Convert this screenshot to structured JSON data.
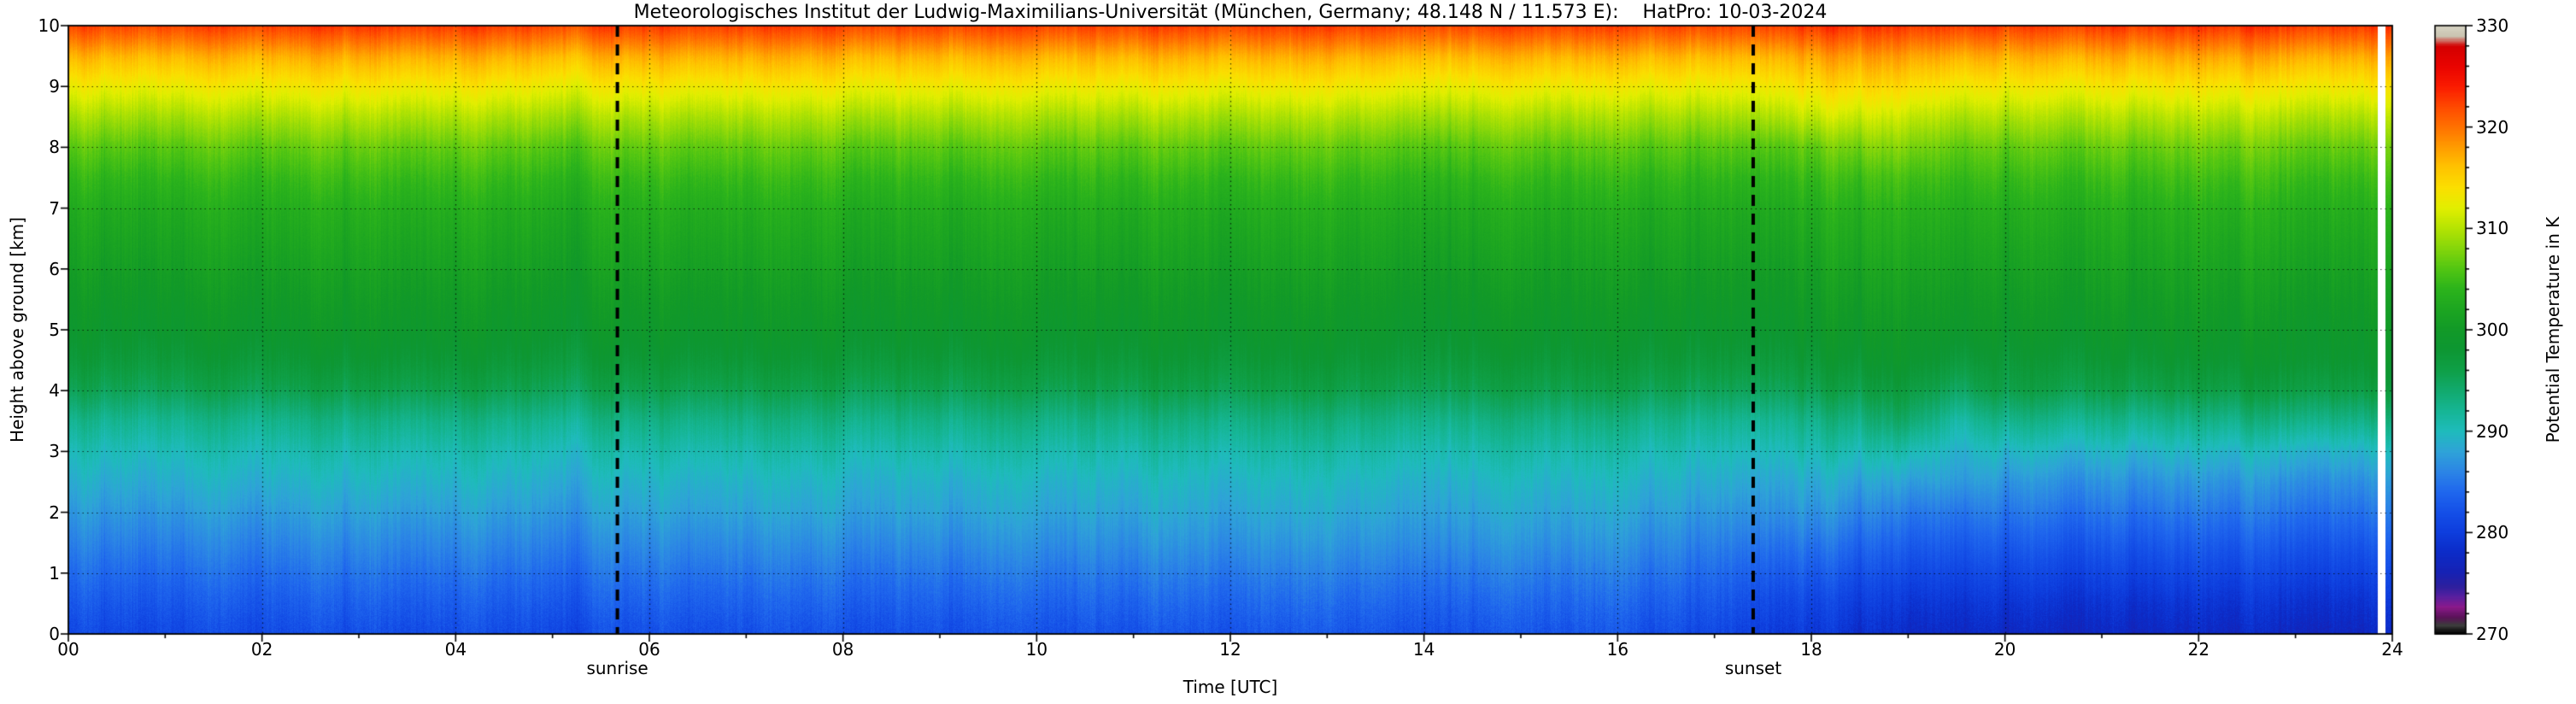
{
  "figure": {
    "background": "#ffffff",
    "axis_color": "#000000"
  },
  "chart_data": {
    "type": "heatmap",
    "title": "Meteorologisches Institut der Ludwig-Maximilians-Universität (München, Germany; 48.148 N / 11.573 E):    HatPro: 10-03-2024",
    "xlabel": "Time [UTC]",
    "ylabel": "Height above ground [km]",
    "colorbar_label": "Potential Temperature in K",
    "xlim": [
      0,
      24
    ],
    "ylim": [
      0,
      10
    ],
    "clim": [
      270,
      330
    ],
    "grid": "dotted",
    "legend_position": "none",
    "xtick_values": [
      0,
      2,
      4,
      6,
      8,
      10,
      12,
      14,
      16,
      18,
      20,
      22,
      24
    ],
    "xtick_labels": [
      "00",
      "02",
      "04",
      "06",
      "08",
      "10",
      "12",
      "14",
      "16",
      "18",
      "20",
      "22",
      "24"
    ],
    "ytick_values": [
      0,
      1,
      2,
      3,
      4,
      5,
      6,
      7,
      8,
      9,
      10
    ],
    "ctick_values": [
      270,
      280,
      290,
      300,
      310,
      320,
      330
    ],
    "annotations": [
      {
        "text": "sunrise",
        "x": 5.67,
        "style": "dashed-vertical-line"
      },
      {
        "text": "sunset",
        "x": 17.4,
        "style": "dashed-vertical-line"
      }
    ],
    "missing_data_intervals": [
      [
        23.85,
        23.93
      ]
    ],
    "colormap_stops": [
      [
        270,
        "#000000"
      ],
      [
        270.8,
        "#3c3c3c"
      ],
      [
        271.6,
        "#5a1258"
      ],
      [
        272.6,
        "#8b1a8b"
      ],
      [
        273.6,
        "#5a20a0"
      ],
      [
        274.6,
        "#2e1f9e"
      ],
      [
        276,
        "#1722b4"
      ],
      [
        278,
        "#0c2cc8"
      ],
      [
        280,
        "#0e3ede"
      ],
      [
        282,
        "#1550e8"
      ],
      [
        284,
        "#2068ee"
      ],
      [
        286,
        "#2c86e6"
      ],
      [
        288,
        "#2fa4d8"
      ],
      [
        290,
        "#1fbcbc"
      ],
      [
        292,
        "#16b694"
      ],
      [
        294,
        "#12aa6e"
      ],
      [
        296,
        "#0fa048"
      ],
      [
        298,
        "#0d9733"
      ],
      [
        300,
        "#129a28"
      ],
      [
        302,
        "#1da621"
      ],
      [
        304,
        "#2cb41c"
      ],
      [
        306,
        "#52c613"
      ],
      [
        308,
        "#85d60b"
      ],
      [
        310,
        "#b5e403"
      ],
      [
        312,
        "#e2ef00"
      ],
      [
        314,
        "#fbe000"
      ],
      [
        316,
        "#ffc400"
      ],
      [
        318,
        "#ff9d00"
      ],
      [
        320,
        "#ff7200"
      ],
      [
        322,
        "#ff4a00"
      ],
      [
        324,
        "#fb1c00"
      ],
      [
        326,
        "#ea0400"
      ],
      [
        328,
        "#d40000"
      ],
      [
        329,
        "#cac5b2"
      ],
      [
        330,
        "#d8d4c4"
      ]
    ],
    "heatmap": {
      "time_h": [
        0,
        4,
        8,
        12,
        16,
        17,
        18,
        18.5,
        19,
        19.5,
        20,
        21,
        22,
        23,
        24
      ],
      "height_km": [
        0,
        0.5,
        1,
        1.5,
        2,
        2.5,
        3,
        3.5,
        4,
        4.5,
        5,
        5.5,
        6,
        6.5,
        7,
        7.5,
        8,
        8.5,
        9,
        9.5,
        10
      ],
      "potential_temperature_K": [
        [
          281.5,
          283,
          284.5,
          286,
          287.5,
          289,
          290.5,
          292.5,
          295.5,
          297.5,
          299,
          300,
          301,
          302,
          303,
          304.5,
          306.5,
          309.5,
          313,
          317,
          322.5
        ],
        [
          281.5,
          283,
          284.5,
          286,
          287.5,
          289,
          290.5,
          292.5,
          295.5,
          297.5,
          299,
          300,
          301,
          302,
          303,
          304.5,
          306.5,
          309.5,
          313,
          317,
          322.5
        ],
        [
          282,
          283.5,
          285,
          286.5,
          288,
          289.2,
          290.8,
          292.8,
          295.5,
          297.5,
          299,
          300,
          301,
          302,
          303,
          304.5,
          306.5,
          309.5,
          313,
          317,
          322.5
        ],
        [
          282.5,
          284,
          285.5,
          287,
          288.3,
          289.5,
          291,
          293,
          295.8,
          297.6,
          299,
          300,
          301,
          302,
          303,
          304.5,
          306.5,
          309.5,
          313,
          317,
          322.5
        ],
        [
          282.5,
          284,
          285.5,
          287,
          288.3,
          289.5,
          291,
          293,
          295.8,
          297.6,
          299,
          300,
          301,
          302,
          303,
          304.5,
          306.5,
          309.5,
          313,
          317,
          322.5
        ],
        [
          281.5,
          283,
          284.5,
          286,
          287.5,
          289,
          290.5,
          292.5,
          295.5,
          297.5,
          299,
          300,
          301,
          302,
          303,
          304.5,
          306.5,
          309.5,
          313,
          317,
          322.5
        ],
        [
          279.5,
          281,
          283,
          285,
          287,
          288.5,
          290.5,
          292.5,
          295.5,
          297.5,
          299,
          300,
          301,
          302,
          303,
          304.5,
          306.5,
          310.5,
          314,
          317.5,
          323
        ],
        [
          279,
          280.5,
          282.5,
          284.5,
          286.5,
          288.5,
          291,
          293.5,
          296.5,
          298.5,
          300,
          301,
          302,
          303,
          304,
          305.5,
          308,
          311.5,
          315,
          318.5,
          323.5
        ],
        [
          278.5,
          280,
          282,
          284,
          286,
          288.5,
          291.5,
          295,
          297.5,
          299.5,
          300.5,
          301.5,
          302.5,
          303.5,
          304.5,
          306,
          308.5,
          311.5,
          315,
          318.5,
          323.5
        ],
        [
          278,
          279.5,
          281.5,
          283.5,
          285.5,
          288,
          289.5,
          291.5,
          295,
          297.5,
          299.5,
          300.5,
          301.5,
          302.5,
          303.5,
          305,
          307,
          310,
          313.5,
          317.5,
          323
        ],
        [
          278,
          279.5,
          281.5,
          283.5,
          285.5,
          287.5,
          290,
          293,
          296.5,
          298,
          299.5,
          300.5,
          301.5,
          302.5,
          303.5,
          305,
          307,
          310,
          313.5,
          317.5,
          323
        ],
        [
          277.5,
          279,
          281,
          283,
          285,
          287,
          289.5,
          292.5,
          296,
          298,
          299.5,
          300.5,
          301.5,
          302.5,
          303.5,
          305,
          307,
          310,
          313.5,
          317.5,
          323
        ],
        [
          277.5,
          279,
          281,
          283,
          285,
          287,
          289.5,
          292.5,
          296,
          298,
          299.5,
          300.5,
          301.5,
          302.5,
          303.5,
          305,
          307,
          310,
          313.5,
          317.5,
          323
        ],
        [
          277.5,
          279,
          281,
          283,
          285,
          287,
          289.5,
          293,
          296.5,
          298.5,
          299.5,
          300.5,
          301.5,
          302.5,
          303.5,
          305,
          307,
          310,
          313.5,
          317.5,
          323
        ],
        [
          277.5,
          279,
          281,
          283,
          285,
          287,
          289.5,
          293,
          296.5,
          298.5,
          299.5,
          300.5,
          301.5,
          302.5,
          303.5,
          305,
          307,
          310,
          313.5,
          317.5,
          323
        ]
      ]
    }
  }
}
